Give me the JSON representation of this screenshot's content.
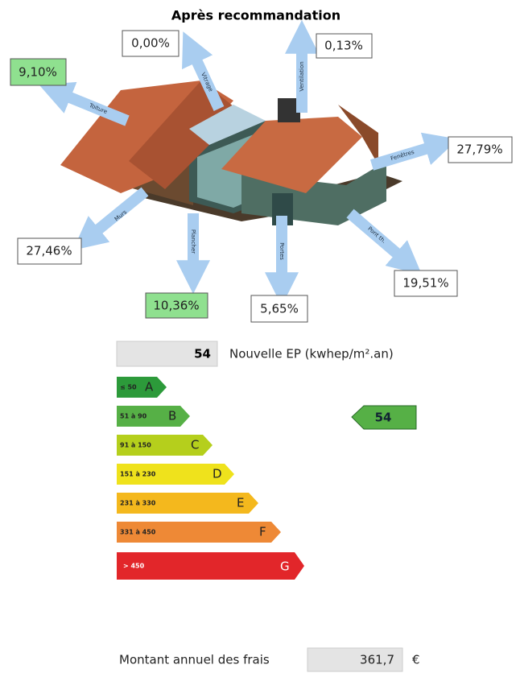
{
  "title": "Après recommandation",
  "arrows": [
    {
      "label": "Toiture",
      "value": "9,10%"
    },
    {
      "label": "Ventilation",
      "value": "0,13%"
    },
    {
      "label": "Vitrage",
      "value": "0,00%"
    },
    {
      "label": "Fenêtres",
      "value": "27,79%"
    },
    {
      "label": "Murs",
      "value": "27,46%"
    },
    {
      "label": "Plancher",
      "value": "10,36%"
    },
    {
      "label": "Portes",
      "value": "5,65%"
    },
    {
      "label": "Pont th.",
      "value": "19,51%"
    }
  ],
  "ep": {
    "value": "54",
    "label": "Nouvelle EP (kwhep/m².an)"
  },
  "bands": [
    {
      "range": "≤ 50",
      "letter": "A"
    },
    {
      "range": "51 à 90",
      "letter": "B"
    },
    {
      "range": "91 à 150",
      "letter": "C"
    },
    {
      "range": "151 à 230",
      "letter": "D"
    },
    {
      "range": "231 à 330",
      "letter": "E"
    },
    {
      "range": "331 à 450",
      "letter": "F"
    },
    {
      "range": "> 450",
      "letter": "G"
    }
  ],
  "rating": "54",
  "cost": {
    "label": "Montant annuel des frais",
    "value": "361,7",
    "unit": "€"
  }
}
